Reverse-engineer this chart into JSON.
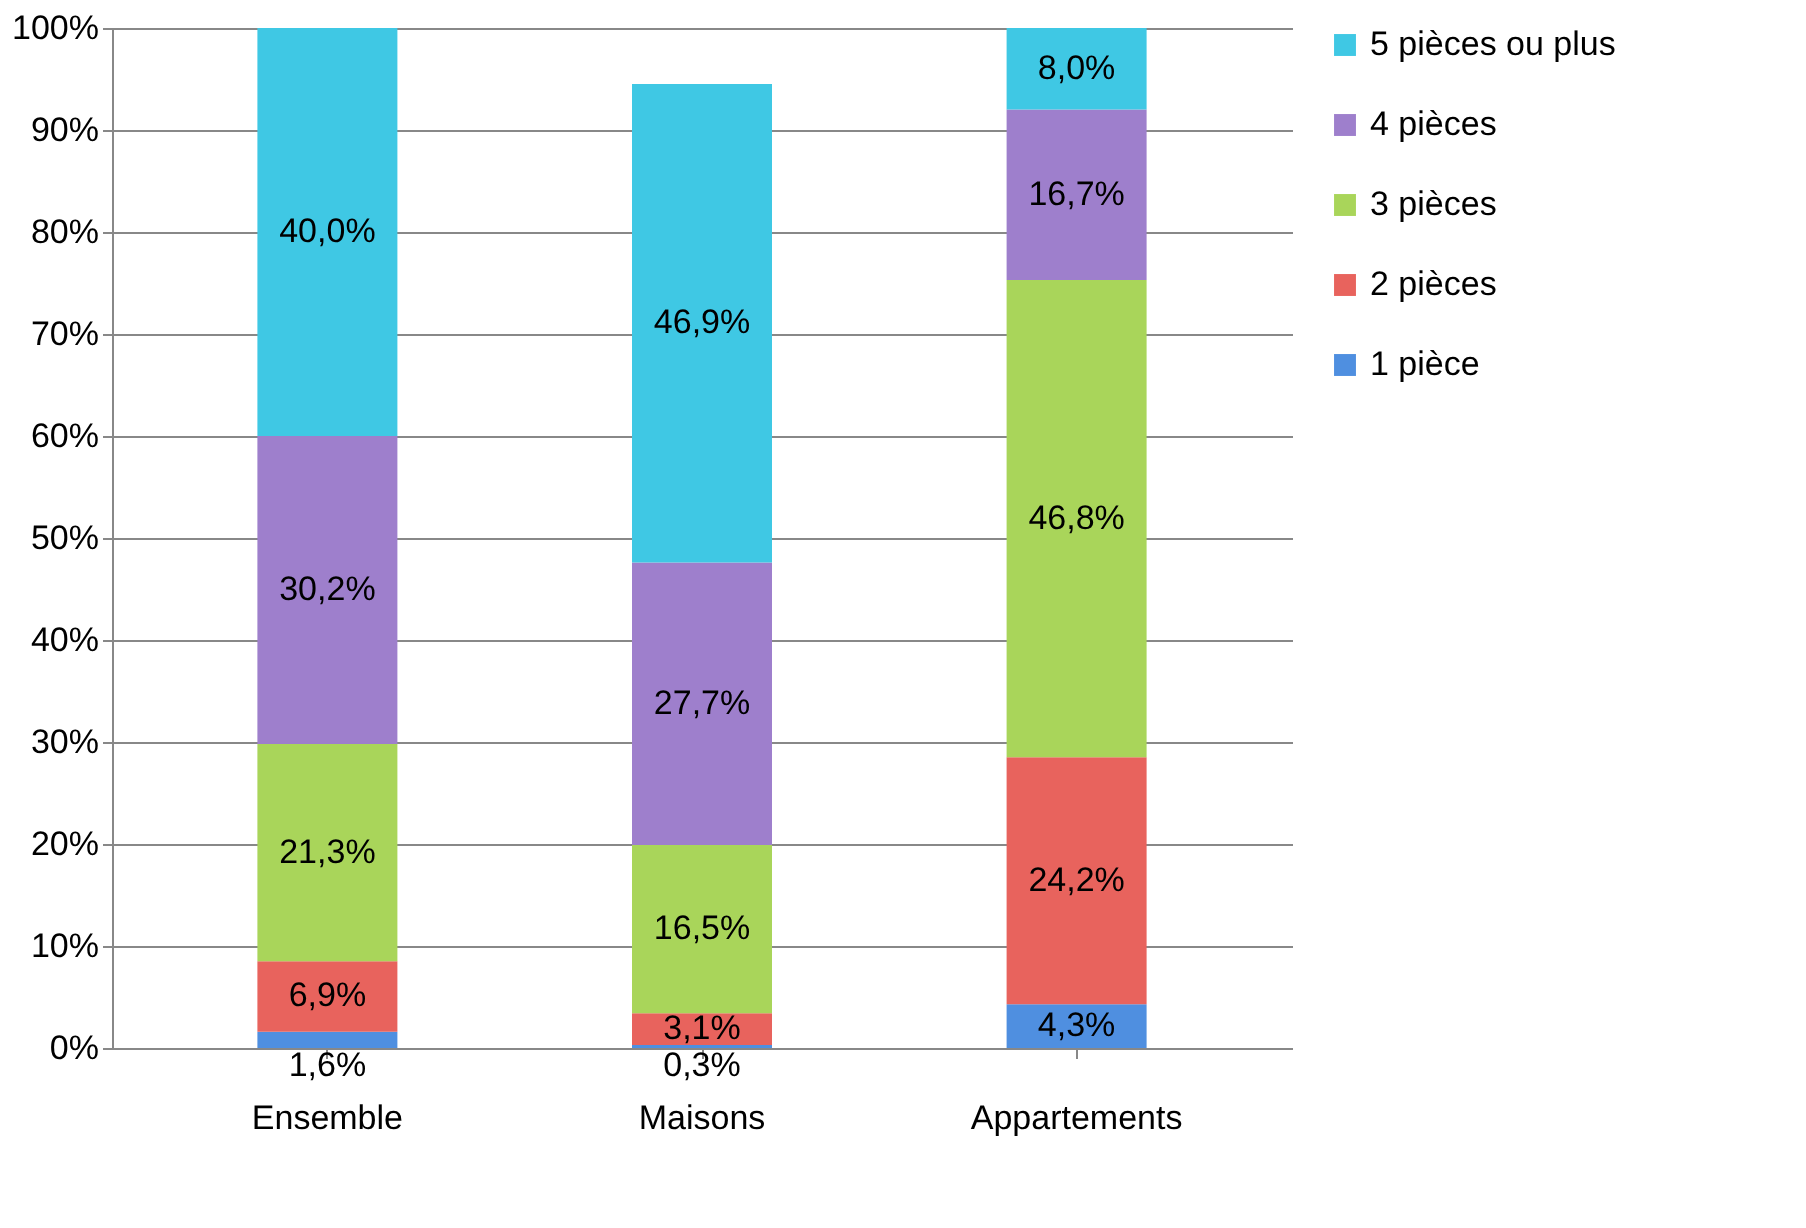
{
  "chart_data": {
    "type": "bar",
    "stacked": true,
    "categories": [
      "Ensemble",
      "Maisons",
      "Appartements"
    ],
    "series": [
      {
        "name": "1 pièce",
        "color": "#4f8fe0",
        "values": [
          1.6,
          0.3,
          4.3
        ],
        "value_labels": [
          "1,6%",
          "0,3%",
          "4,3%"
        ]
      },
      {
        "name": "2 pièces",
        "color": "#e8635d",
        "values": [
          6.9,
          3.1,
          24.2
        ],
        "value_labels": [
          "6,9%",
          "3,1%",
          "24,2%"
        ]
      },
      {
        "name": "3 pièces",
        "color": "#a9d55a",
        "values": [
          21.3,
          16.5,
          46.8
        ],
        "value_labels": [
          "21,3%",
          "16,5%",
          "46,8%"
        ]
      },
      {
        "name": "4 pièces",
        "color": "#9e7fcc",
        "values": [
          30.2,
          27.7,
          16.7
        ],
        "value_labels": [
          "30,2%",
          "27,7%",
          "16,7%"
        ]
      },
      {
        "name": "5 pièces ou plus",
        "color": "#3fc8e4",
        "values": [
          40.0,
          46.9,
          8.0
        ],
        "value_labels": [
          "40,0%",
          "46,9%",
          "8,0%"
        ]
      }
    ],
    "ylim": [
      0,
      100
    ],
    "yticks": [
      {
        "value": 0,
        "label": "0%"
      },
      {
        "value": 10,
        "label": "10%"
      },
      {
        "value": 20,
        "label": "20%"
      },
      {
        "value": 30,
        "label": "30%"
      },
      {
        "value": 40,
        "label": "40%"
      },
      {
        "value": 50,
        "label": "50%"
      },
      {
        "value": 60,
        "label": "60%"
      },
      {
        "value": 70,
        "label": "70%"
      },
      {
        "value": 80,
        "label": "80%"
      },
      {
        "value": 90,
        "label": "90%"
      },
      {
        "value": 100,
        "label": "100%"
      }
    ],
    "grid": "y",
    "legend": "right"
  }
}
